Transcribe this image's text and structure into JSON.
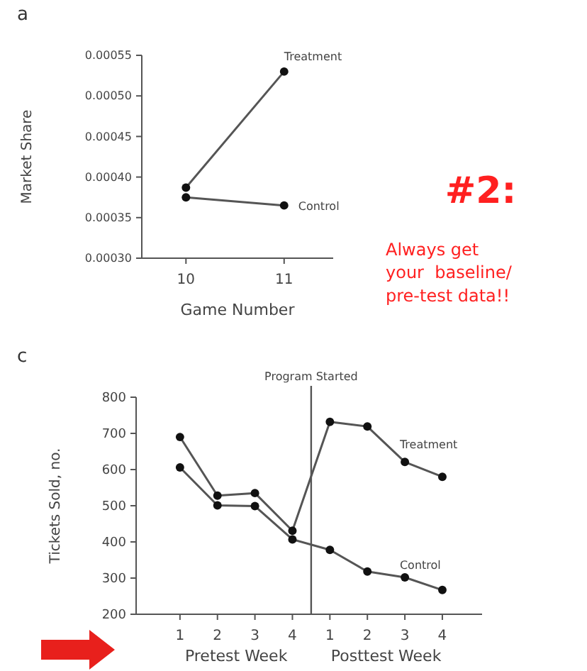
{
  "chart_data": [
    {
      "type": "line",
      "xlabel": "Game Number",
      "ylabel": "Market Share",
      "x": [
        10,
        11
      ],
      "xlim": [
        9.55,
        11.5
      ],
      "xticks": [
        10,
        11
      ],
      "ylim": [
        0.0003,
        0.00055
      ],
      "yticks": [
        {
          "value": 0.0003,
          "label": "0.00030"
        },
        {
          "value": 0.00035,
          "label": "0.00035"
        },
        {
          "value": 0.0004,
          "label": "0.00040"
        },
        {
          "value": 0.00045,
          "label": "0.00045"
        },
        {
          "value": 0.0005,
          "label": "0.00050"
        },
        {
          "value": 0.00055,
          "label": "0.00055"
        }
      ],
      "series": [
        {
          "name": "Treatment",
          "color": "#555555",
          "values": [
            0.000387,
            0.00053
          ]
        },
        {
          "name": "Control",
          "color": "#555555",
          "values": [
            0.000375,
            0.000365
          ]
        }
      ],
      "marker": "circle",
      "grid": false,
      "annotations": [
        "a",
        "#2:",
        "Always get\nyour  baseline/\npre-test data!!"
      ]
    },
    {
      "type": "line",
      "ylabel": "Tickets Sold, no.",
      "categories": [
        "1",
        "2",
        "3",
        "4",
        "1",
        "2",
        "3",
        "4"
      ],
      "ylim": [
        200,
        800
      ],
      "yticks": [
        200,
        300,
        400,
        500,
        600,
        700,
        800
      ],
      "series": [
        {
          "name": "Treatment",
          "color": "#555555",
          "values": [
            690,
            528,
            535,
            431,
            732,
            719,
            621,
            580
          ]
        },
        {
          "name": "Control",
          "color": "#555555",
          "values": [
            606,
            501,
            499,
            407,
            378,
            318,
            302,
            267
          ]
        }
      ],
      "marker": "circle",
      "grid": false,
      "annotations": [
        "c",
        "Pretest Week",
        "Posttest Week",
        "Program Started"
      ]
    }
  ]
}
